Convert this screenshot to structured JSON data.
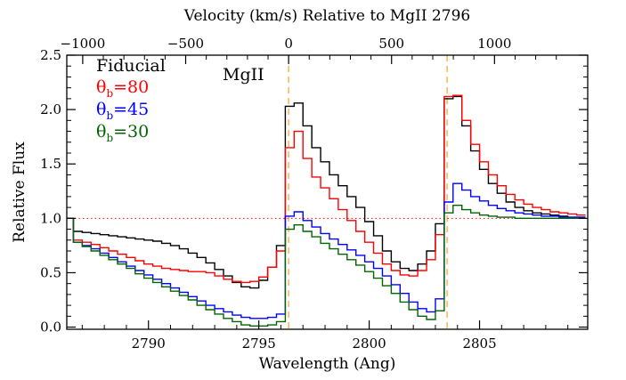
{
  "chart_data": {
    "type": "line",
    "drawstyle": "steps-mid",
    "title": "",
    "xlabel": "Wavelength (Ang)",
    "ylabel": "Relative Flux",
    "top_xlabel": "Velocity (km/s) Relative to MgII 2796",
    "xlim": [
      2786.3,
      2809.9
    ],
    "ylim": [
      -0.02,
      2.5
    ],
    "xticks": [
      2790,
      2795,
      2800,
      2805
    ],
    "xtick_labels": [
      "2790",
      "2795",
      "2800",
      "2805"
    ],
    "yticks": [
      0.0,
      0.5,
      1.0,
      1.5,
      2.0,
      2.5
    ],
    "ytick_labels": [
      "0.0",
      "0.5",
      "1.0",
      "1.5",
      "2.0",
      "2.5"
    ],
    "top_xticks_velocity": [
      -1000,
      -500,
      0,
      500,
      1000
    ],
    "top_xtick_labels": [
      "−1000",
      "−500",
      "0",
      "500",
      "1000"
    ],
    "reference_wavelength": 2796.35,
    "annotation": "MgII",
    "reference_lines": [
      {
        "type": "horizontal",
        "y": 1.0,
        "color": "#ff0000",
        "style": "dotted"
      },
      {
        "type": "vertical",
        "x": 2796.35,
        "color": "#ffa020",
        "style": "dashed"
      },
      {
        "type": "vertical",
        "x": 2803.53,
        "color": "#ffa020",
        "style": "dashed"
      }
    ],
    "legend": [
      {
        "label": "Fiducial",
        "color": "#000000"
      },
      {
        "label_main": "θ",
        "label_sub": "b",
        "label_value": "=80",
        "color": "#ff0000"
      },
      {
        "label_main": "θ",
        "label_sub": "b",
        "label_value": "=45",
        "color": "#0000ff"
      },
      {
        "label_main": "θ",
        "label_sub": "b",
        "label_value": "=30",
        "color": "#006400"
      }
    ],
    "x": [
      2786.4,
      2786.8,
      2787.2,
      2787.6,
      2788.0,
      2788.4,
      2788.8,
      2789.2,
      2789.6,
      2790.0,
      2790.4,
      2790.8,
      2791.2,
      2791.6,
      2792.0,
      2792.4,
      2792.8,
      2793.2,
      2793.6,
      2794.0,
      2794.4,
      2794.8,
      2795.2,
      2795.6,
      2796.0,
      2796.4,
      2796.8,
      2797.2,
      2797.6,
      2798.0,
      2798.4,
      2798.8,
      2799.2,
      2799.6,
      2800.0,
      2800.4,
      2800.8,
      2801.2,
      2801.6,
      2802.0,
      2802.4,
      2802.8,
      2803.2,
      2803.6,
      2804.0,
      2804.4,
      2804.8,
      2805.2,
      2805.6,
      2806.0,
      2806.4,
      2806.8,
      2807.2,
      2807.6,
      2808.0,
      2808.4,
      2808.8,
      2809.2,
      2809.6
    ],
    "series": [
      {
        "name": "Fiducial",
        "color": "#000000",
        "values": [
          1.0,
          0.88,
          0.87,
          0.86,
          0.85,
          0.84,
          0.83,
          0.82,
          0.81,
          0.8,
          0.79,
          0.77,
          0.75,
          0.72,
          0.68,
          0.64,
          0.59,
          0.53,
          0.47,
          0.41,
          0.37,
          0.36,
          0.43,
          0.55,
          0.75,
          2.03,
          2.06,
          1.85,
          1.65,
          1.52,
          1.4,
          1.3,
          1.2,
          1.1,
          0.97,
          0.84,
          0.7,
          0.6,
          0.54,
          0.52,
          0.58,
          0.7,
          0.95,
          2.1,
          2.12,
          1.85,
          1.62,
          1.45,
          1.32,
          1.23,
          1.15,
          1.1,
          1.07,
          1.05,
          1.04,
          1.03,
          1.02,
          1.01,
          1.01
        ]
      },
      {
        "name": "θb=80",
        "color": "#ff0000",
        "values": [
          1.0,
          0.8,
          0.78,
          0.76,
          0.73,
          0.7,
          0.67,
          0.64,
          0.61,
          0.58,
          0.56,
          0.54,
          0.53,
          0.52,
          0.51,
          0.51,
          0.5,
          0.47,
          0.44,
          0.42,
          0.41,
          0.42,
          0.46,
          0.55,
          0.7,
          1.65,
          1.8,
          1.55,
          1.38,
          1.28,
          1.18,
          1.08,
          0.98,
          0.88,
          0.78,
          0.68,
          0.58,
          0.52,
          0.48,
          0.47,
          0.52,
          0.62,
          0.85,
          2.12,
          2.13,
          1.9,
          1.68,
          1.52,
          1.4,
          1.3,
          1.22,
          1.17,
          1.13,
          1.1,
          1.08,
          1.06,
          1.05,
          1.04,
          1.03
        ]
      },
      {
        "name": "θb=45",
        "color": "#0000ff",
        "values": [
          1.0,
          0.78,
          0.75,
          0.72,
          0.68,
          0.64,
          0.6,
          0.56,
          0.52,
          0.48,
          0.44,
          0.4,
          0.36,
          0.32,
          0.28,
          0.24,
          0.2,
          0.17,
          0.14,
          0.11,
          0.09,
          0.08,
          0.08,
          0.09,
          0.12,
          1.02,
          1.06,
          0.98,
          0.92,
          0.86,
          0.81,
          0.76,
          0.71,
          0.66,
          0.6,
          0.54,
          0.47,
          0.39,
          0.31,
          0.23,
          0.17,
          0.14,
          0.26,
          1.15,
          1.32,
          1.26,
          1.2,
          1.16,
          1.12,
          1.09,
          1.07,
          1.05,
          1.04,
          1.03,
          1.02,
          1.02,
          1.01,
          1.01,
          1.01
        ]
      },
      {
        "name": "θb=30",
        "color": "#006400",
        "values": [
          1.0,
          0.78,
          0.74,
          0.7,
          0.66,
          0.62,
          0.58,
          0.54,
          0.49,
          0.45,
          0.41,
          0.37,
          0.33,
          0.29,
          0.25,
          0.2,
          0.16,
          0.12,
          0.08,
          0.05,
          0.02,
          0.01,
          0.01,
          0.02,
          0.05,
          0.9,
          0.94,
          0.88,
          0.83,
          0.77,
          0.72,
          0.67,
          0.62,
          0.57,
          0.51,
          0.45,
          0.38,
          0.31,
          0.23,
          0.16,
          0.1,
          0.07,
          0.15,
          1.05,
          1.12,
          1.08,
          1.05,
          1.03,
          1.02,
          1.01,
          1.01,
          1.0,
          1.0,
          1.0,
          1.0,
          1.0,
          1.0,
          1.0,
          1.0
        ]
      }
    ]
  }
}
